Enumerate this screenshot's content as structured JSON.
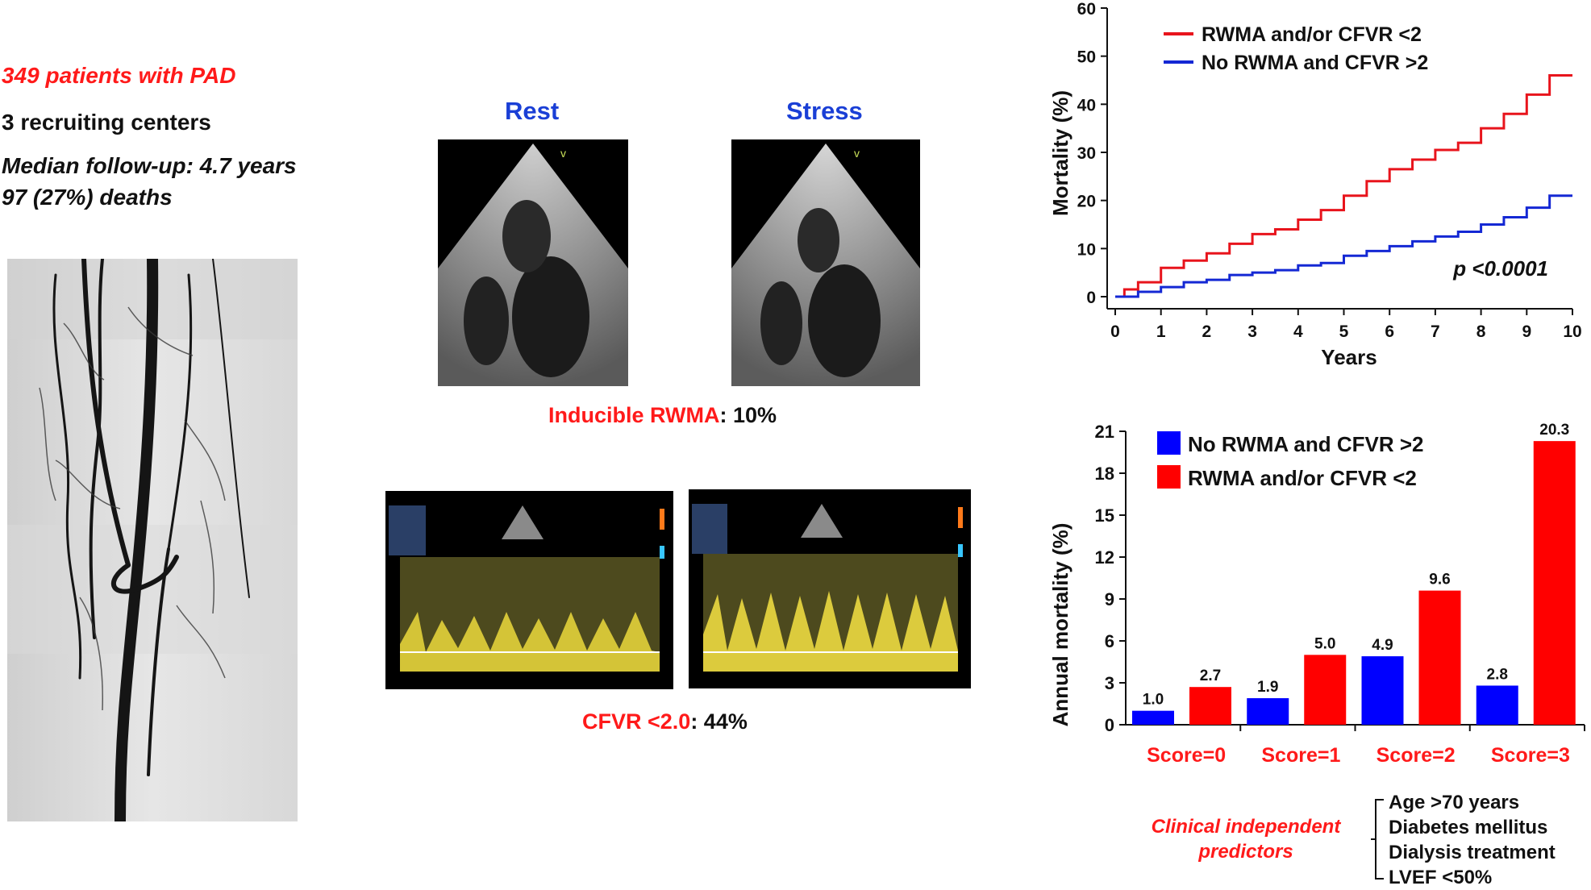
{
  "study": {
    "patients": "349 patients with PAD",
    "centers": "3 recruiting centers",
    "followup": "Median follow-up: 4.7 years",
    "deaths": "97 (27%) deaths"
  },
  "echo": {
    "rest_label": "Rest",
    "stress_label": "Stress",
    "rwma_label": "Inducible RWMA",
    "rwma_value": ": 10%",
    "cfvr_label": "CFVR <2.0",
    "cfvr_value": ": 44%"
  },
  "chart_data": [
    {
      "type": "line",
      "xlabel": "Years",
      "ylabel": "Mortality (%)",
      "xlim": [
        0,
        10
      ],
      "ylim": [
        0,
        60
      ],
      "x_ticks": [
        0,
        1,
        2,
        3,
        4,
        5,
        6,
        7,
        8,
        9,
        10
      ],
      "y_ticks": [
        0,
        10,
        20,
        30,
        40,
        50,
        60
      ],
      "legend_position": "top-left",
      "annotation": "p <0.0001",
      "series": [
        {
          "name": "RWMA and/or CFVR <2",
          "color": "#e8141c",
          "x": [
            0,
            0.2,
            0.5,
            1,
            1.5,
            2,
            2.5,
            3,
            3.5,
            4,
            4.5,
            5,
            5.5,
            6,
            6.5,
            7,
            7.5,
            8,
            8.5,
            9,
            9.5,
            10
          ],
          "y": [
            0,
            1.5,
            3,
            6,
            7.5,
            9,
            11,
            13,
            14,
            16,
            18,
            21,
            24,
            26.5,
            28.5,
            30.5,
            32,
            35,
            38,
            42,
            46,
            46
          ]
        },
        {
          "name": "No RWMA and CFVR >2",
          "color": "#1428d4",
          "x": [
            0,
            0.5,
            1,
            1.5,
            2,
            2.5,
            3,
            3.5,
            4,
            4.5,
            5,
            5.5,
            6,
            6.5,
            7,
            7.5,
            8,
            8.5,
            9,
            9.5,
            10
          ],
          "y": [
            0,
            1,
            2,
            3,
            3.5,
            4.5,
            5,
            5.5,
            6.5,
            7,
            8.5,
            9.5,
            10.5,
            11.5,
            12.5,
            13.5,
            15,
            16.5,
            18.5,
            21,
            21
          ]
        }
      ]
    },
    {
      "type": "bar",
      "ylabel": "Annual mortality (%)",
      "ylim": [
        0,
        21
      ],
      "y_ticks": [
        0,
        3,
        6,
        9,
        12,
        15,
        18,
        21
      ],
      "categories": [
        "Score=0",
        "Score=1",
        "Score=2",
        "Score=3"
      ],
      "legend_position": "top-left",
      "series": [
        {
          "name": "No RWMA and CFVR >2",
          "color": "#0000ff",
          "values": [
            1.0,
            1.9,
            4.9,
            2.8
          ],
          "labels": [
            "1.0",
            "1.9",
            "4.9",
            "2.8"
          ]
        },
        {
          "name": "RWMA and/or CFVR <2",
          "color": "#ff0000",
          "values": [
            2.7,
            5.0,
            9.6,
            20.3
          ],
          "labels": [
            "2.7",
            "5.0",
            "9.6",
            "20.3"
          ]
        }
      ]
    }
  ],
  "predictors": {
    "label_line1": "Clinical independent",
    "label_line2": "predictors",
    "items": [
      "Age >70 years",
      "Diabetes mellitus",
      "Dialysis treatment",
      "LVEF <50%"
    ]
  }
}
